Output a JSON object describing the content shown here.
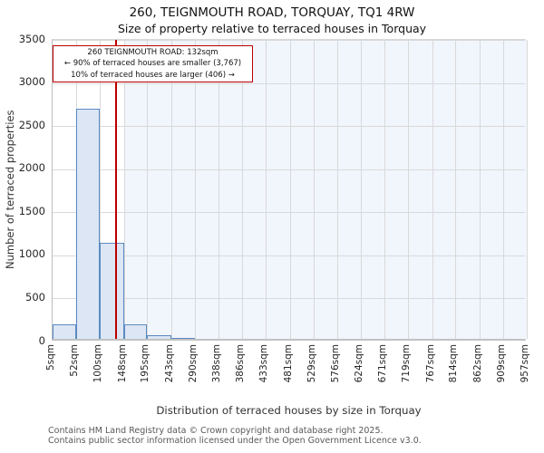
{
  "page": {
    "title": "260, TEIGNMOUTH ROAD, TORQUAY, TQ1 4RW",
    "subtitle": "Size of property relative to terraced houses in Torquay"
  },
  "annotation": {
    "line1": "260 TEIGNMOUTH ROAD: 132sqm",
    "line2": "← 90% of terraced houses are smaller (3,767)",
    "line3": "10% of terraced houses are larger (406) →"
  },
  "footer": {
    "line1": "Contains HM Land Registry data © Crown copyright and database right 2025.",
    "line2": "Contains public sector information licensed under the Open Government Licence v3.0."
  },
  "chart_data": {
    "type": "bar",
    "title": "260, TEIGNMOUTH ROAD, TORQUAY, TQ1 4RW",
    "subtitle": "Size of property relative to terraced houses in Torquay",
    "xlabel": "Distribution of terraced houses by size in Torquay",
    "ylabel": "Number of terraced properties",
    "ylim": [
      0,
      3500
    ],
    "y_ticks": [
      0,
      500,
      1000,
      1500,
      2000,
      2500,
      3000,
      3500
    ],
    "bin_edges_sqm": [
      5,
      52,
      100,
      148,
      195,
      243,
      290,
      338,
      386,
      433,
      481,
      529,
      576,
      624,
      671,
      719,
      767,
      814,
      862,
      909,
      957
    ],
    "x_tick_labels": [
      "5sqm",
      "52sqm",
      "100sqm",
      "148sqm",
      "195sqm",
      "243sqm",
      "290sqm",
      "338sqm",
      "386sqm",
      "433sqm",
      "481sqm",
      "529sqm",
      "576sqm",
      "624sqm",
      "671sqm",
      "719sqm",
      "767sqm",
      "814sqm",
      "862sqm",
      "909sqm",
      "957sqm"
    ],
    "counts": [
      170,
      2670,
      1110,
      170,
      45,
      15,
      0,
      0,
      0,
      0,
      0,
      0,
      0,
      0,
      0,
      0,
      0,
      0,
      0,
      0
    ],
    "marker": {
      "value_sqm": 132,
      "label": "260 TEIGNMOUTH ROAD: 132sqm",
      "smaller_pct": 90,
      "smaller_count": "3,767",
      "larger_pct": 10,
      "larger_count": "406"
    },
    "shaded_from_sqm": 148,
    "grid": true,
    "legend": false,
    "colors": {
      "bar_fill": "#dce6f4",
      "bar_border": "#5b8ac0",
      "marker_line": "#bb0000",
      "annotation_border": "#bb0000",
      "shaded_region": "#f1f5fc",
      "grid_line": "#d9d9d9"
    }
  }
}
